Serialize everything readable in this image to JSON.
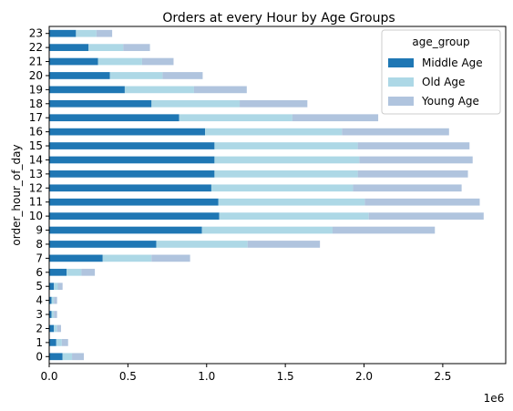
{
  "chart_data": {
    "type": "bar",
    "orientation": "horizontal",
    "stacked": true,
    "title": "Orders at every Hour by Age Groups",
    "xlabel": "",
    "ylabel": "order_hour_of_day",
    "x_offset_label": "1e6",
    "xlim": [
      0,
      2.9
    ],
    "xticks": [
      "0.0",
      "0.5",
      "1.0",
      "1.5",
      "2.0",
      "2.5"
    ],
    "grid": false,
    "legend_title": "age_group",
    "legend_position": "top-right",
    "categories": [
      "0",
      "1",
      "2",
      "3",
      "4",
      "5",
      "6",
      "7",
      "8",
      "9",
      "10",
      "11",
      "12",
      "13",
      "14",
      "15",
      "16",
      "17",
      "18",
      "19",
      "20",
      "21",
      "22",
      "23"
    ],
    "series": [
      {
        "name": "Middle Age",
        "color": "#1f77b4",
        "values": [
          0.085,
          0.045,
          0.03,
          0.015,
          0.015,
          0.03,
          0.11,
          0.34,
          0.68,
          0.97,
          1.08,
          1.075,
          1.03,
          1.05,
          1.05,
          1.05,
          0.99,
          0.825,
          0.65,
          0.48,
          0.385,
          0.31,
          0.25,
          0.17
        ]
      },
      {
        "name": "Old Age",
        "color": "#add8e6",
        "values": [
          0.06,
          0.035,
          0.02,
          0.015,
          0.015,
          0.025,
          0.095,
          0.31,
          0.58,
          0.83,
          0.95,
          0.93,
          0.9,
          0.91,
          0.92,
          0.91,
          0.87,
          0.72,
          0.56,
          0.44,
          0.335,
          0.28,
          0.22,
          0.13
        ]
      },
      {
        "name": "Young Age",
        "color": "#b0c4de",
        "values": [
          0.075,
          0.04,
          0.025,
          0.02,
          0.02,
          0.03,
          0.085,
          0.245,
          0.46,
          0.65,
          0.73,
          0.73,
          0.69,
          0.7,
          0.72,
          0.71,
          0.68,
          0.545,
          0.43,
          0.335,
          0.255,
          0.2,
          0.17,
          0.1
        ]
      }
    ]
  }
}
